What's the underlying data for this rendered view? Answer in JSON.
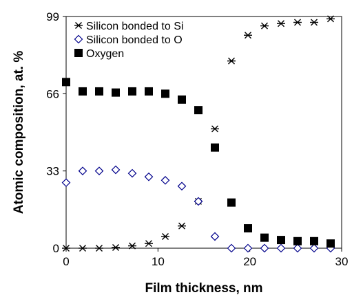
{
  "chart_data": {
    "type": "scatter",
    "xlabel": "Film thickness, nm",
    "ylabel": "Atomic composition, at. %",
    "xlim": [
      0,
      30
    ],
    "ylim": [
      0,
      99
    ],
    "xticks": [
      "0",
      "10",
      "20",
      "30"
    ],
    "yticks": [
      "0",
      "33",
      "66",
      "99"
    ],
    "grid": false,
    "legend_position": "top-left",
    "series": [
      {
        "name": "Silicon bonded to Si",
        "marker": "asterisk",
        "color": "#000000",
        "points": [
          [
            0,
            0
          ],
          [
            1.8,
            0
          ],
          [
            3.6,
            0
          ],
          [
            5.4,
            0.3
          ],
          [
            7.2,
            1
          ],
          [
            9,
            2
          ],
          [
            10.8,
            5
          ],
          [
            12.6,
            9.5
          ],
          [
            14.4,
            20
          ],
          [
            16.2,
            51
          ],
          [
            18,
            80
          ],
          [
            19.8,
            91
          ],
          [
            21.6,
            95
          ],
          [
            23.4,
            96
          ],
          [
            25.2,
            96.5
          ],
          [
            27,
            96.5
          ],
          [
            28.8,
            98
          ]
        ]
      },
      {
        "name": "Silicon bonded to O",
        "marker": "diamond-open",
        "color": "#00008B",
        "points": [
          [
            0,
            28
          ],
          [
            1.8,
            33
          ],
          [
            3.6,
            33
          ],
          [
            5.4,
            33.5
          ],
          [
            7.2,
            32
          ],
          [
            9,
            30.5
          ],
          [
            10.8,
            29
          ],
          [
            12.6,
            26.5
          ],
          [
            14.4,
            20
          ],
          [
            16.2,
            5
          ],
          [
            18,
            0
          ],
          [
            19.8,
            0
          ],
          [
            21.6,
            0
          ],
          [
            23.4,
            0
          ],
          [
            25.2,
            0
          ],
          [
            27,
            0
          ],
          [
            28.8,
            0
          ]
        ]
      },
      {
        "name": "Oxygen",
        "marker": "square-filled",
        "color": "#000000",
        "points": [
          [
            0,
            71
          ],
          [
            1.8,
            67
          ],
          [
            3.6,
            67
          ],
          [
            5.4,
            66.5
          ],
          [
            7.2,
            67
          ],
          [
            9,
            67
          ],
          [
            10.8,
            66
          ],
          [
            12.6,
            63.5
          ],
          [
            14.4,
            59
          ],
          [
            16.2,
            43
          ],
          [
            18,
            19.5
          ],
          [
            19.8,
            8.5
          ],
          [
            21.6,
            4.5
          ],
          [
            23.4,
            3.5
          ],
          [
            25.2,
            3
          ],
          [
            27,
            3
          ],
          [
            28.8,
            2
          ]
        ]
      }
    ]
  }
}
